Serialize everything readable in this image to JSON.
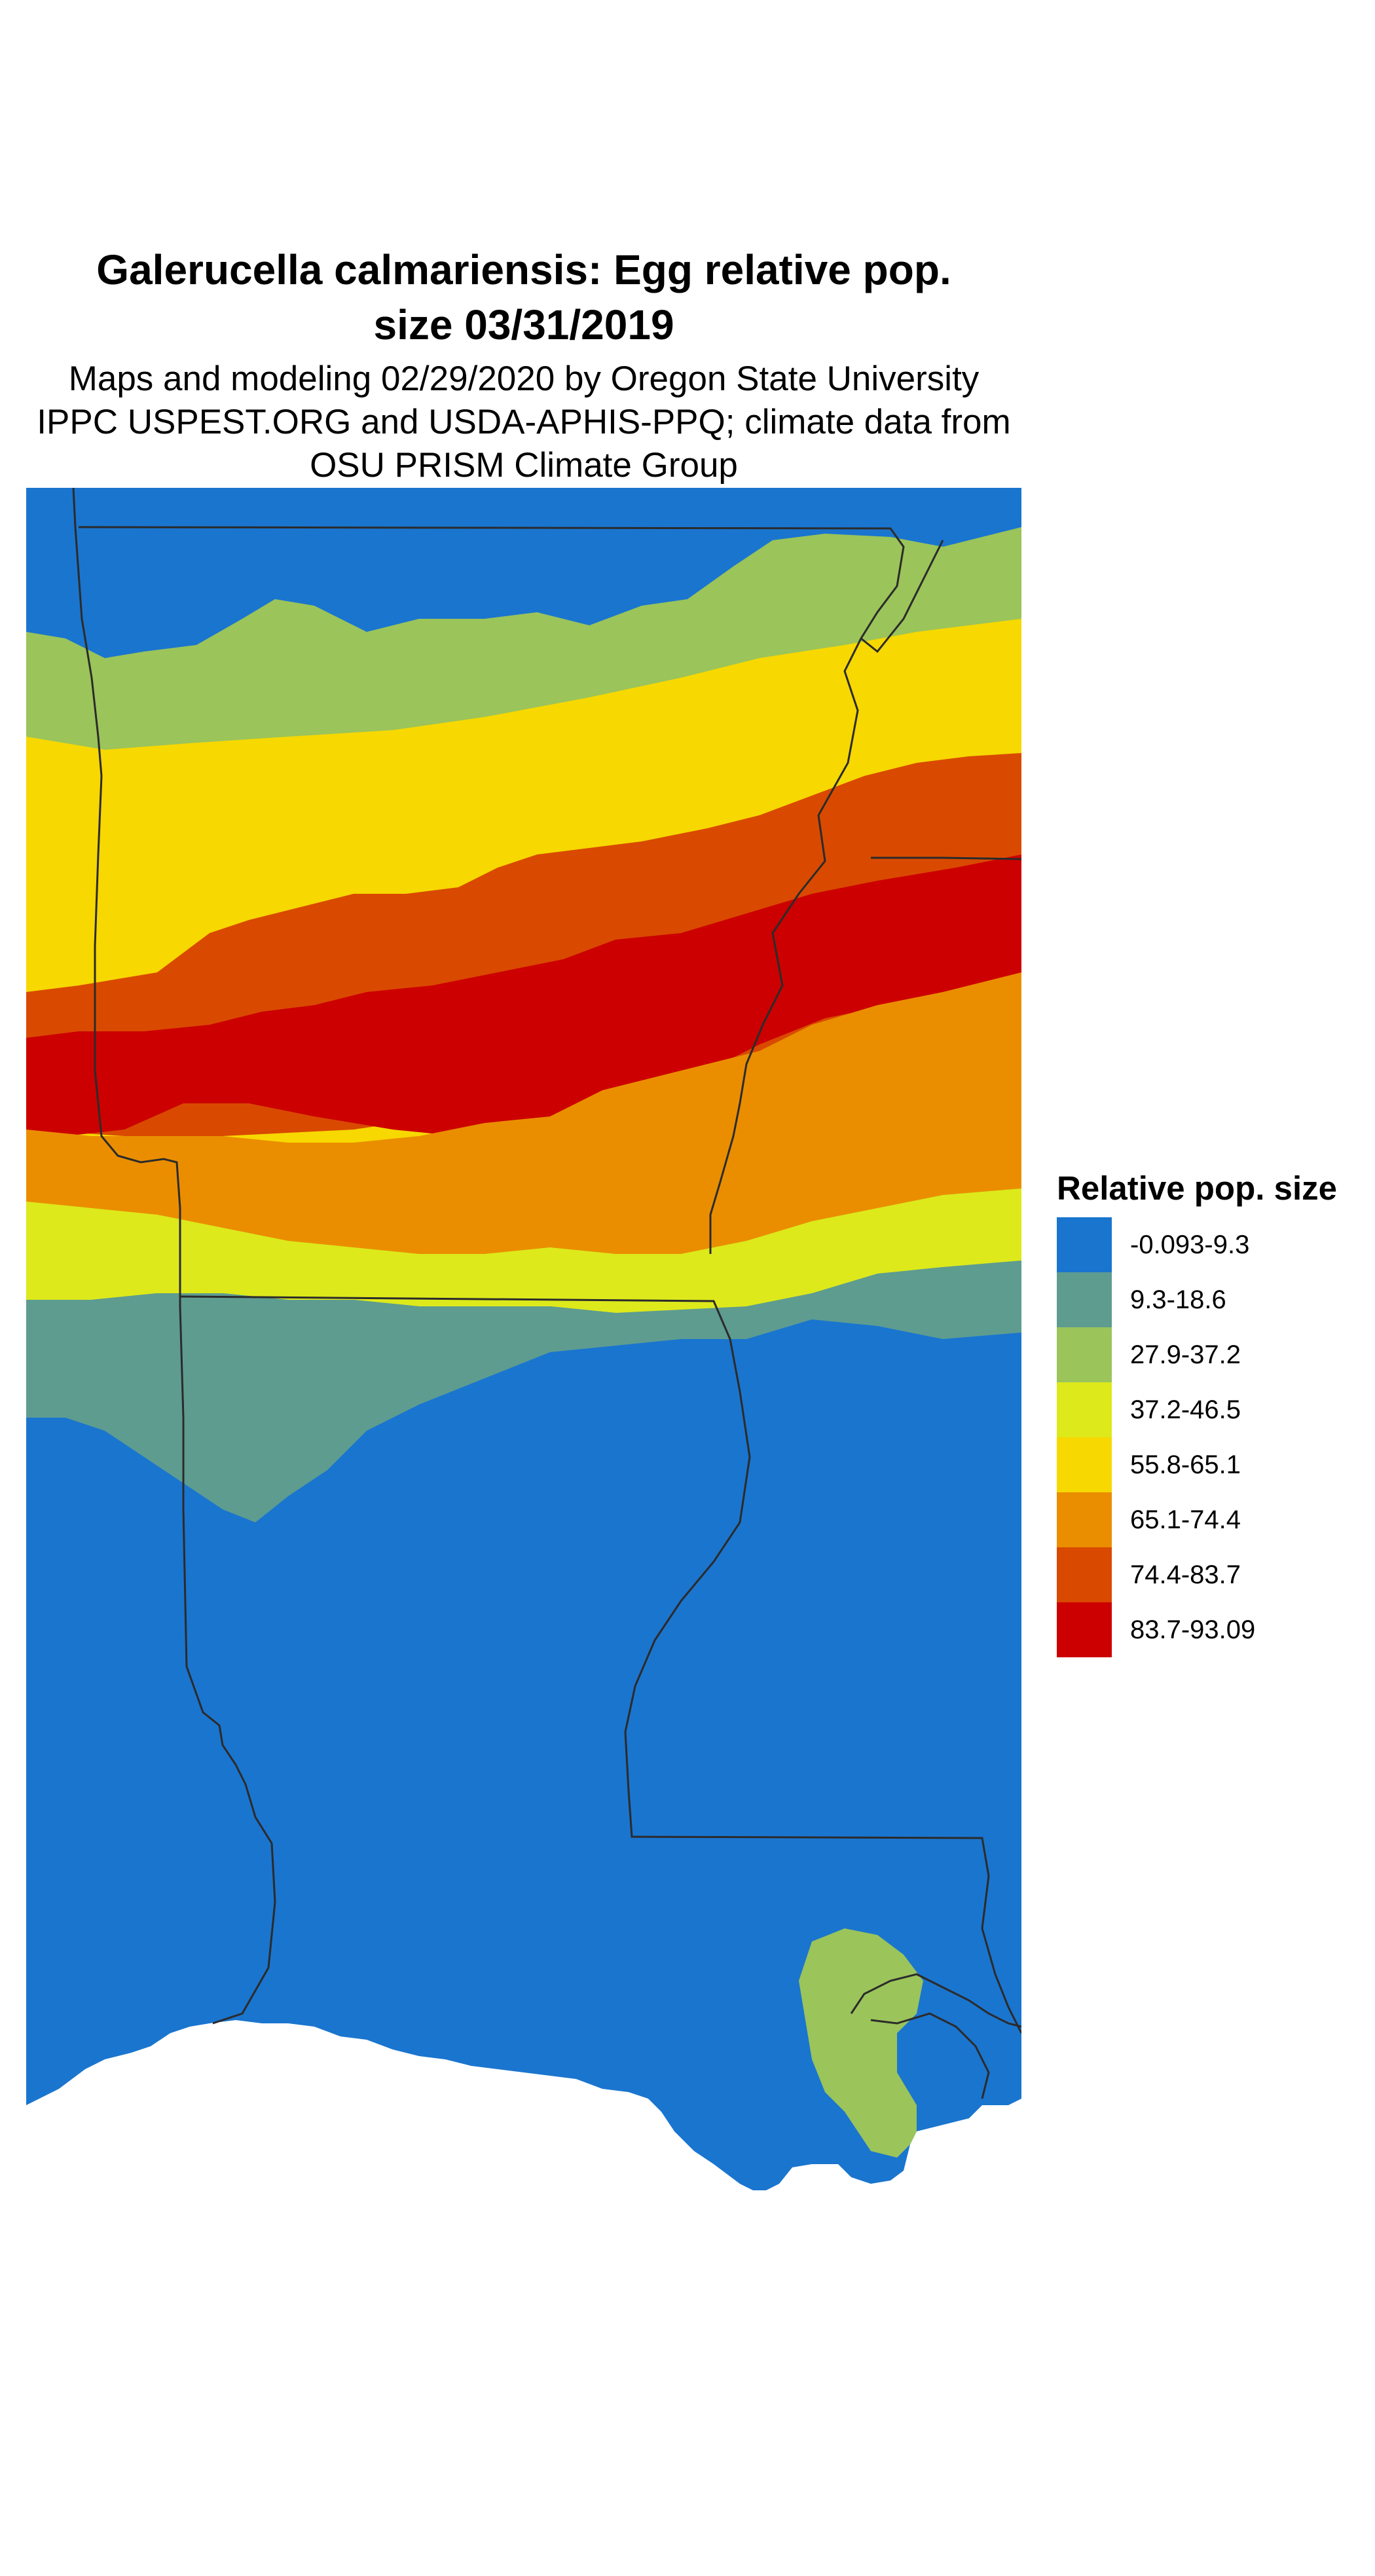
{
  "title": "Galerucella calmariensis: Egg relative pop. size 03/31/2019",
  "title_lines": [
    "Galerucella calmariensis: Egg relative pop.",
    "size 03/31/2019"
  ],
  "subtitle_lines": [
    "Maps and modeling 02/29/2020 by Oregon State University",
    "IPPC USPEST.ORG and USDA-APHIS-PPQ; climate data from",
    "OSU PRISM Climate Group"
  ],
  "legend": {
    "title": "Relative pop. size",
    "items": [
      {
        "label": "-0.093-9.3",
        "color": "#1a75cf"
      },
      {
        "label": "9.3-18.6",
        "color": "#5e9c90"
      },
      {
        "label": "27.9-37.2",
        "color": "#9bc45a"
      },
      {
        "label": "37.2-46.5",
        "color": "#dde91b"
      },
      {
        "label": "55.8-65.1",
        "color": "#f7d800"
      },
      {
        "label": "65.1-74.4",
        "color": "#ea8e00"
      },
      {
        "label": "74.4-83.7",
        "color": "#d94a00"
      },
      {
        "label": "83.7-93.09",
        "color": "#cc0000"
      }
    ]
  },
  "colors": {
    "ocean": "#ffffff",
    "border": "#2b2b2b"
  }
}
